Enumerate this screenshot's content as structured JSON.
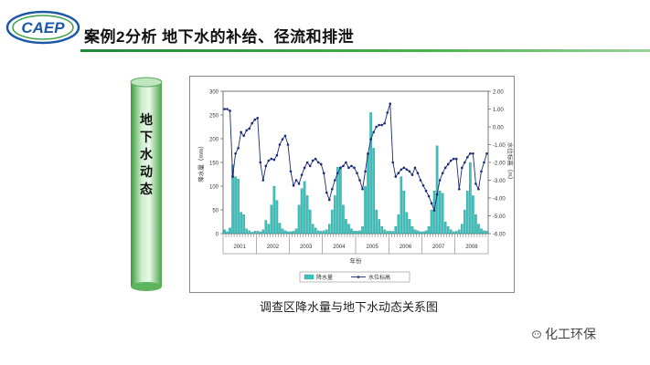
{
  "header": {
    "logo_text": "CAEP",
    "title": "案例2分析 地下水的补给、径流和排泄"
  },
  "sidebar": {
    "label_chars": [
      "地",
      "下",
      "水",
      "动",
      "态"
    ]
  },
  "caption": "调查区降水量与地下水动态关系图",
  "brand": "化工环保",
  "colors": {
    "bar": "#3fc2bd",
    "line": "#1a2a78",
    "header_line": "#2e9a46",
    "logo": "#1c58a8"
  },
  "chart_data": {
    "type": "bar+line",
    "title": "",
    "xlabel": "年份",
    "ylabel_left": "降水量（mm）",
    "ylabel_right": "水位标高（m）",
    "ylim_left": [
      0,
      300
    ],
    "yticks_left": [
      "0",
      "50",
      "100",
      "150",
      "200",
      "250",
      "300"
    ],
    "ylim_right": [
      -6,
      2
    ],
    "yticks_right": [
      "-6.00",
      "-5.00",
      "-4.00",
      "-3.00",
      "-2.00",
      "-1.00",
      "0.00",
      "1.00",
      "2.00"
    ],
    "year_labels": [
      "2001",
      "2002",
      "2003",
      "2004",
      "2005",
      "2006",
      "2007",
      "2008"
    ],
    "legend": [
      "降水量",
      "水位标高"
    ],
    "series": [
      {
        "name": "降水量",
        "kind": "bar",
        "values": [
          8,
          4,
          12,
          145,
          120,
          115,
          45,
          40,
          10,
          6,
          3,
          5,
          5,
          4,
          8,
          28,
          20,
          60,
          100,
          70,
          22,
          10,
          6,
          4,
          4,
          5,
          10,
          60,
          95,
          110,
          80,
          50,
          20,
          12,
          6,
          5,
          6,
          8,
          20,
          50,
          80,
          140,
          140,
          60,
          30,
          20,
          10,
          5,
          5,
          6,
          15,
          100,
          170,
          255,
          180,
          50,
          30,
          15,
          8,
          5,
          5,
          5,
          15,
          40,
          120,
          90,
          45,
          30,
          15,
          8,
          6,
          4,
          4,
          6,
          15,
          50,
          90,
          185,
          90,
          85,
          25,
          15,
          8,
          4,
          5,
          8,
          20,
          50,
          90,
          150,
          80,
          40,
          20,
          10,
          6,
          5
        ]
      },
      {
        "name": "水位标高",
        "kind": "line",
        "values": [
          1.0,
          1.0,
          0.9,
          -2.8,
          -1.5,
          -1.2,
          -0.3,
          -0.5,
          -0.2,
          -0.1,
          0.2,
          0.4,
          0.5,
          -2.0,
          -3.0,
          -2.2,
          -1.9,
          -1.8,
          -1.85,
          -1.6,
          -1.0,
          -0.7,
          -0.5,
          -1.0,
          -2.5,
          -3.3,
          -3.0,
          -3.2,
          -2.7,
          -2.3,
          -2.0,
          -2.2,
          -1.9,
          -1.8,
          -2.0,
          -2.1,
          -2.6,
          -3.7,
          -4.1,
          -3.5,
          -3.0,
          -2.6,
          -2.3,
          -2.2,
          -2.0,
          -2.3,
          -2.2,
          -2.3,
          -2.6,
          -3.0,
          -3.5,
          -2.5,
          -1.5,
          -0.7,
          -0.3,
          0.0,
          0.1,
          0.1,
          0.2,
          0.8,
          1.3,
          -2.0,
          -2.8,
          -2.6,
          -2.4,
          -2.3,
          -2.4,
          -2.5,
          -2.7,
          -2.3,
          -2.6,
          -3.0,
          -3.3,
          -3.6,
          -3.9,
          -4.3,
          -4.7,
          -3.8,
          -3.0,
          -2.6,
          -2.3,
          -2.1,
          -1.9,
          -1.8,
          -1.8,
          -3.5,
          -2.3,
          -2.0,
          -1.7,
          -1.5,
          -1.5,
          -3.2,
          -3.5,
          -2.5,
          -2.0,
          -1.5
        ]
      }
    ]
  }
}
